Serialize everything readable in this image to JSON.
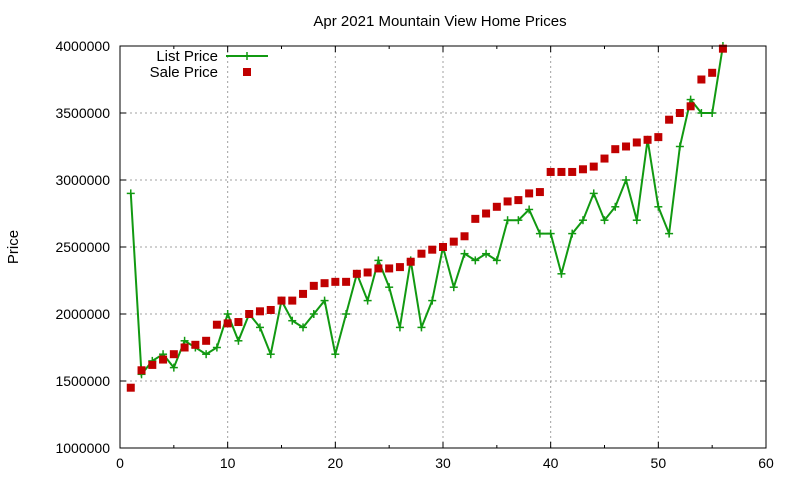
{
  "chart_data": {
    "type": "line",
    "title": "Apr 2021 Mountain View Home Prices",
    "xlabel": "",
    "ylabel": "Price",
    "xlim": [
      0,
      60
    ],
    "ylim": [
      1000000,
      4000000
    ],
    "x_ticks": [
      0,
      10,
      20,
      30,
      40,
      50,
      60
    ],
    "y_ticks": [
      1000000,
      1500000,
      2000000,
      2500000,
      3000000,
      3500000,
      4000000
    ],
    "grid": true,
    "legend_position": "top-left",
    "series": [
      {
        "name": "List Price",
        "style": "line-with-plus-markers",
        "color": "#119911",
        "x": [
          1,
          2,
          3,
          4,
          5,
          6,
          7,
          8,
          9,
          10,
          11,
          12,
          13,
          14,
          15,
          16,
          17,
          18,
          19,
          20,
          21,
          22,
          23,
          24,
          25,
          26,
          27,
          28,
          29,
          30,
          31,
          32,
          33,
          34,
          35,
          36,
          37,
          38,
          39,
          40,
          41,
          42,
          43,
          44,
          45,
          46,
          47,
          48,
          49,
          50,
          51,
          52,
          53,
          54,
          55,
          56
        ],
        "y": [
          2900000,
          1550000,
          1650000,
          1700000,
          1600000,
          1800000,
          1750000,
          1700000,
          1750000,
          2000000,
          1800000,
          2000000,
          1900000,
          1700000,
          2100000,
          1950000,
          1900000,
          2000000,
          2100000,
          1700000,
          2000000,
          2300000,
          2100000,
          2400000,
          2200000,
          1900000,
          2400000,
          1900000,
          2100000,
          2500000,
          2200000,
          2450000,
          2400000,
          2450000,
          2400000,
          2700000,
          2700000,
          2780000,
          2600000,
          2600000,
          2300000,
          2600000,
          2700000,
          2900000,
          2700000,
          2800000,
          3000000,
          2700000,
          3300000,
          2800000,
          2600000,
          3250000,
          3600000,
          3500000,
          3500000,
          4000000
        ]
      },
      {
        "name": "Sale Price",
        "style": "square-markers",
        "color": "#c00000",
        "x": [
          1,
          2,
          3,
          4,
          5,
          6,
          7,
          8,
          9,
          10,
          11,
          12,
          13,
          14,
          15,
          16,
          17,
          18,
          19,
          20,
          21,
          22,
          23,
          24,
          25,
          26,
          27,
          28,
          29,
          30,
          31,
          32,
          33,
          34,
          35,
          36,
          37,
          38,
          39,
          40,
          41,
          42,
          43,
          44,
          45,
          46,
          47,
          48,
          49,
          50,
          51,
          52,
          53,
          54,
          55,
          56
        ],
        "y": [
          1450000,
          1580000,
          1620000,
          1660000,
          1700000,
          1750000,
          1770000,
          1800000,
          1920000,
          1930000,
          1940000,
          2000000,
          2020000,
          2030000,
          2100000,
          2100000,
          2150000,
          2210000,
          2230000,
          2240000,
          2240000,
          2300000,
          2310000,
          2340000,
          2340000,
          2350000,
          2390000,
          2450000,
          2480000,
          2500000,
          2540000,
          2580000,
          2710000,
          2750000,
          2800000,
          2840000,
          2850000,
          2900000,
          2910000,
          3060000,
          3060000,
          3060000,
          3080000,
          3100000,
          3160000,
          3230000,
          3250000,
          3280000,
          3300000,
          3320000,
          3450000,
          3500000,
          3550000,
          3750000,
          3800000,
          3980000
        ]
      }
    ]
  }
}
